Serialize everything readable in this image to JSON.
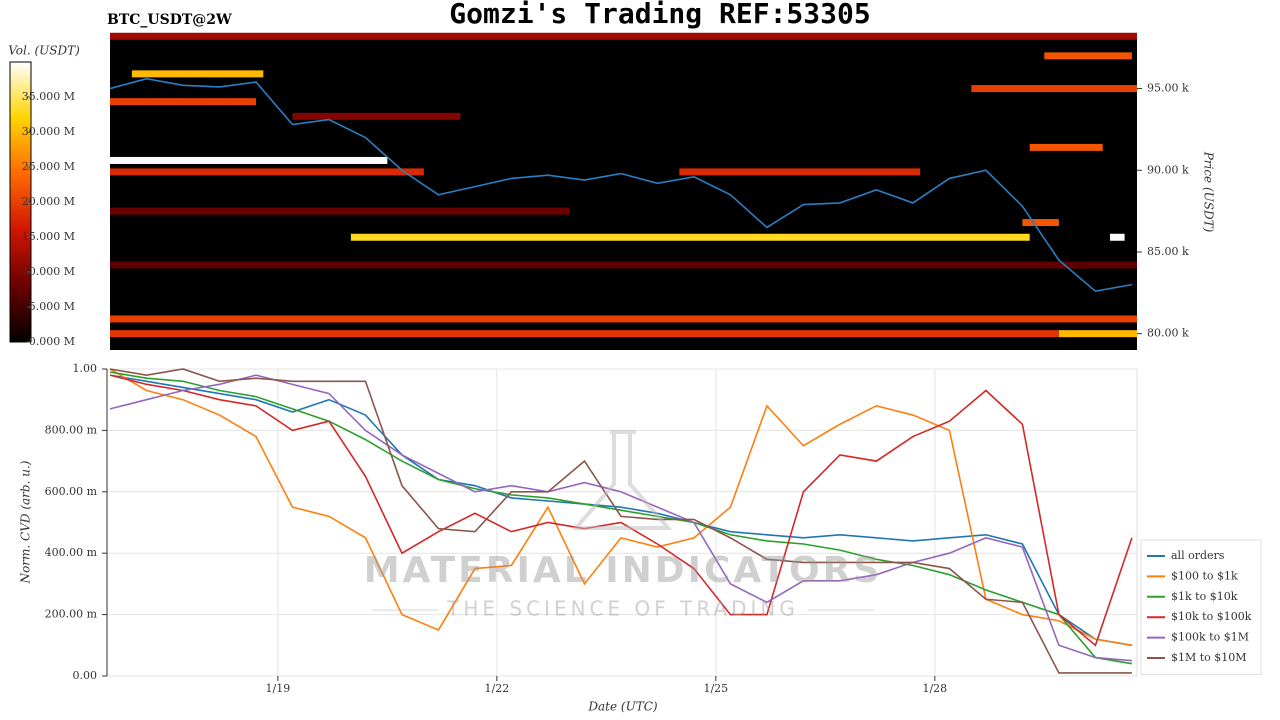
{
  "title": "Gomzi's Trading REF:53305",
  "watermark": {
    "brand": "MATERIAL INDICATORS",
    "tagline": "THE SCIENCE OF TRADING"
  },
  "chart_data": [
    {
      "type": "heatmap",
      "label": "BTC_USDT@2W",
      "ylabel": "Price (USDT)",
      "colorbar_label": "Vol. (USDT)",
      "xlim": [
        16.7,
        30.77
      ],
      "ylim": [
        79000,
        98400
      ],
      "yticks": [
        {
          "value": 80000,
          "label": "80.00 k"
        },
        {
          "value": 85000,
          "label": "85.00 k"
        },
        {
          "value": 90000,
          "label": "90.00 k"
        },
        {
          "value": 95000,
          "label": "95.00 k"
        }
      ],
      "clim": [
        0,
        40
      ],
      "cticks": [
        {
          "value": 0,
          "label": "0.000 M"
        },
        {
          "value": 5,
          "label": "5.000 M"
        },
        {
          "value": 10,
          "label": "10.000 M"
        },
        {
          "value": 15,
          "label": "15.000 M"
        },
        {
          "value": 20,
          "label": "20.000 M"
        },
        {
          "value": 25,
          "label": "25.000 M"
        },
        {
          "value": 30,
          "label": "30.000 M"
        },
        {
          "value": 35,
          "label": "35.000 M"
        }
      ],
      "colormap": [
        "#000000",
        "#6b0000",
        "#d01500",
        "#ff6a00",
        "#ffd400",
        "#ffffff"
      ],
      "bands": [
        {
          "price": 98200,
          "start": 16.7,
          "end": 30.77,
          "volume": 12
        },
        {
          "price": 97000,
          "start": 29.5,
          "end": 30.7,
          "volume": 22
        },
        {
          "price": 95900,
          "start": 17.0,
          "end": 18.8,
          "volume": 30
        },
        {
          "price": 95000,
          "start": 28.5,
          "end": 30.77,
          "volume": 20
        },
        {
          "price": 94200,
          "start": 16.7,
          "end": 18.7,
          "volume": 20
        },
        {
          "price": 93300,
          "start": 19.2,
          "end": 21.5,
          "volume": 10
        },
        {
          "price": 91400,
          "start": 29.3,
          "end": 30.3,
          "volume": 22
        },
        {
          "price": 90600,
          "start": 16.7,
          "end": 20.5,
          "volume": 40
        },
        {
          "price": 89900,
          "start": 16.7,
          "end": 21.0,
          "volume": 18
        },
        {
          "price": 89900,
          "start": 24.5,
          "end": 27.8,
          "volume": 18
        },
        {
          "price": 87500,
          "start": 16.7,
          "end": 23.0,
          "volume": 8
        },
        {
          "price": 86800,
          "start": 29.2,
          "end": 29.7,
          "volume": 22
        },
        {
          "price": 85900,
          "start": 20.0,
          "end": 29.3,
          "volume": 33
        },
        {
          "price": 85900,
          "start": 30.4,
          "end": 30.6,
          "volume": 40
        },
        {
          "price": 84200,
          "start": 16.7,
          "end": 30.77,
          "volume": 7
        },
        {
          "price": 80900,
          "start": 16.7,
          "end": 30.77,
          "volume": 20
        },
        {
          "price": 80000,
          "start": 16.7,
          "end": 29.7,
          "volume": 19
        },
        {
          "price": 80000,
          "start": 29.7,
          "end": 30.77,
          "volume": 30
        }
      ],
      "price_line": {
        "color": "#2a7fc4",
        "x": [
          16.7,
          17.2,
          17.7,
          18.2,
          18.7,
          19.2,
          19.7,
          20.2,
          20.7,
          21.2,
          21.7,
          22.2,
          22.7,
          23.2,
          23.7,
          24.2,
          24.7,
          25.2,
          25.7,
          26.2,
          26.7,
          27.2,
          27.7,
          28.2,
          28.7,
          29.2,
          29.7,
          30.2,
          30.7
        ],
        "values": [
          95000,
          95600,
          95200,
          95100,
          95400,
          92800,
          93100,
          92000,
          90000,
          88500,
          89000,
          89500,
          89700,
          89400,
          89800,
          89200,
          89600,
          88500,
          86500,
          87900,
          88000,
          88800,
          88000,
          89500,
          90000,
          87800,
          84500,
          82600,
          83000
        ]
      }
    },
    {
      "type": "line",
      "xlabel": "Date (UTC)",
      "ylabel": "Norm. CVD (arb. u.)",
      "grid": true,
      "legend": "right",
      "xlim": [
        16.7,
        30.77
      ],
      "xticks": [
        {
          "value": 19,
          "label": "1/19"
        },
        {
          "value": 22,
          "label": "1/22"
        },
        {
          "value": 25,
          "label": "1/25"
        },
        {
          "value": 28,
          "label": "1/28"
        }
      ],
      "ylim": [
        0,
        1
      ],
      "yticks": [
        {
          "value": 0,
          "label": "0.00"
        },
        {
          "value": 0.2,
          "label": "200.00 m"
        },
        {
          "value": 0.4,
          "label": "400.00 m"
        },
        {
          "value": 0.6,
          "label": "600.00 m"
        },
        {
          "value": 0.8,
          "label": "800.00 m"
        },
        {
          "value": 1,
          "label": "1.00"
        }
      ],
      "x": [
        16.7,
        17.2,
        17.7,
        18.2,
        18.7,
        19.2,
        19.7,
        20.2,
        20.7,
        21.2,
        21.7,
        22.2,
        22.7,
        23.2,
        23.7,
        24.2,
        24.7,
        25.2,
        25.7,
        26.2,
        26.7,
        27.2,
        27.7,
        28.2,
        28.7,
        29.2,
        29.7,
        30.2,
        30.7
      ],
      "series": [
        {
          "name": "all orders",
          "color": "#1f77b4",
          "values": [
            0.98,
            0.96,
            0.94,
            0.92,
            0.9,
            0.86,
            0.9,
            0.85,
            0.72,
            0.64,
            0.62,
            0.58,
            0.57,
            0.56,
            0.55,
            0.53,
            0.5,
            0.47,
            0.46,
            0.45,
            0.46,
            0.45,
            0.44,
            0.45,
            0.46,
            0.43,
            0.2,
            0.12,
            0.1
          ]
        },
        {
          "name": "$100 to $1k",
          "color": "#ff7f0e",
          "values": [
            1.0,
            0.93,
            0.9,
            0.85,
            0.78,
            0.55,
            0.52,
            0.45,
            0.2,
            0.15,
            0.35,
            0.36,
            0.55,
            0.3,
            0.45,
            0.42,
            0.45,
            0.55,
            0.88,
            0.75,
            0.82,
            0.88,
            0.85,
            0.8,
            0.25,
            0.2,
            0.18,
            0.12,
            0.1
          ]
        },
        {
          "name": "$1k to $10k",
          "color": "#2ca02c",
          "values": [
            0.99,
            0.97,
            0.96,
            0.93,
            0.91,
            0.87,
            0.83,
            0.77,
            0.7,
            0.64,
            0.61,
            0.59,
            0.58,
            0.56,
            0.54,
            0.52,
            0.5,
            0.46,
            0.44,
            0.43,
            0.41,
            0.38,
            0.36,
            0.33,
            0.28,
            0.24,
            0.2,
            0.06,
            0.04
          ]
        },
        {
          "name": "$10k to $100k",
          "color": "#d62728",
          "values": [
            0.98,
            0.95,
            0.93,
            0.9,
            0.88,
            0.8,
            0.83,
            0.65,
            0.4,
            0.47,
            0.53,
            0.47,
            0.5,
            0.48,
            0.5,
            0.43,
            0.35,
            0.2,
            0.2,
            0.6,
            0.72,
            0.7,
            0.78,
            0.83,
            0.93,
            0.82,
            0.2,
            0.1,
            0.45
          ]
        },
        {
          "name": "$100k to $1M",
          "color": "#9467bd",
          "values": [
            0.87,
            0.9,
            0.93,
            0.95,
            0.98,
            0.95,
            0.92,
            0.8,
            0.72,
            0.66,
            0.6,
            0.62,
            0.6,
            0.63,
            0.6,
            0.55,
            0.5,
            0.3,
            0.24,
            0.31,
            0.31,
            0.33,
            0.37,
            0.4,
            0.45,
            0.42,
            0.1,
            0.06,
            0.05
          ]
        },
        {
          "name": "$1M to $10M",
          "color": "#8c564b",
          "values": [
            1.0,
            0.98,
            1.0,
            0.96,
            0.97,
            0.96,
            0.96,
            0.96,
            0.62,
            0.48,
            0.47,
            0.6,
            0.6,
            0.7,
            0.52,
            0.51,
            0.51,
            0.45,
            0.38,
            0.37,
            0.37,
            0.37,
            0.37,
            0.35,
            0.25,
            0.24,
            0.01,
            0.01,
            0.01
          ]
        }
      ]
    }
  ]
}
